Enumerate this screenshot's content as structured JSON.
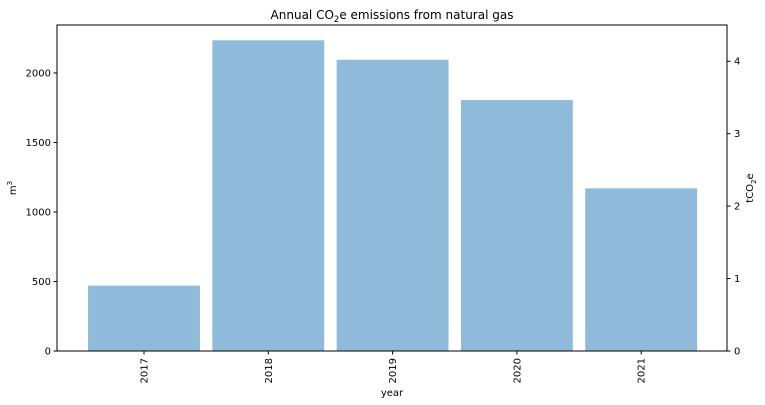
{
  "chart_data": {
    "type": "bar",
    "title": "Annual CO",
    "title_sub": "2",
    "title_tail": "e emissions from natural gas",
    "xlabel": "year",
    "ylabel": "m",
    "ylabel_sup": "3",
    "y2label": "tCO",
    "y2label_sub": "2",
    "y2label_tail": "e",
    "categories": [
      "2017",
      "2018",
      "2019",
      "2020",
      "2021"
    ],
    "values": [
      470,
      2235,
      2095,
      1805,
      1170
    ],
    "ylim": [
      0,
      2345
    ],
    "y2lim": [
      0,
      4.5
    ],
    "yticks": [
      "0",
      "500",
      "1000",
      "1500",
      "2000"
    ],
    "y2ticks": [
      "0",
      "1",
      "2",
      "3",
      "4"
    ],
    "bar_color": "#8fbad9",
    "grid": false
  }
}
